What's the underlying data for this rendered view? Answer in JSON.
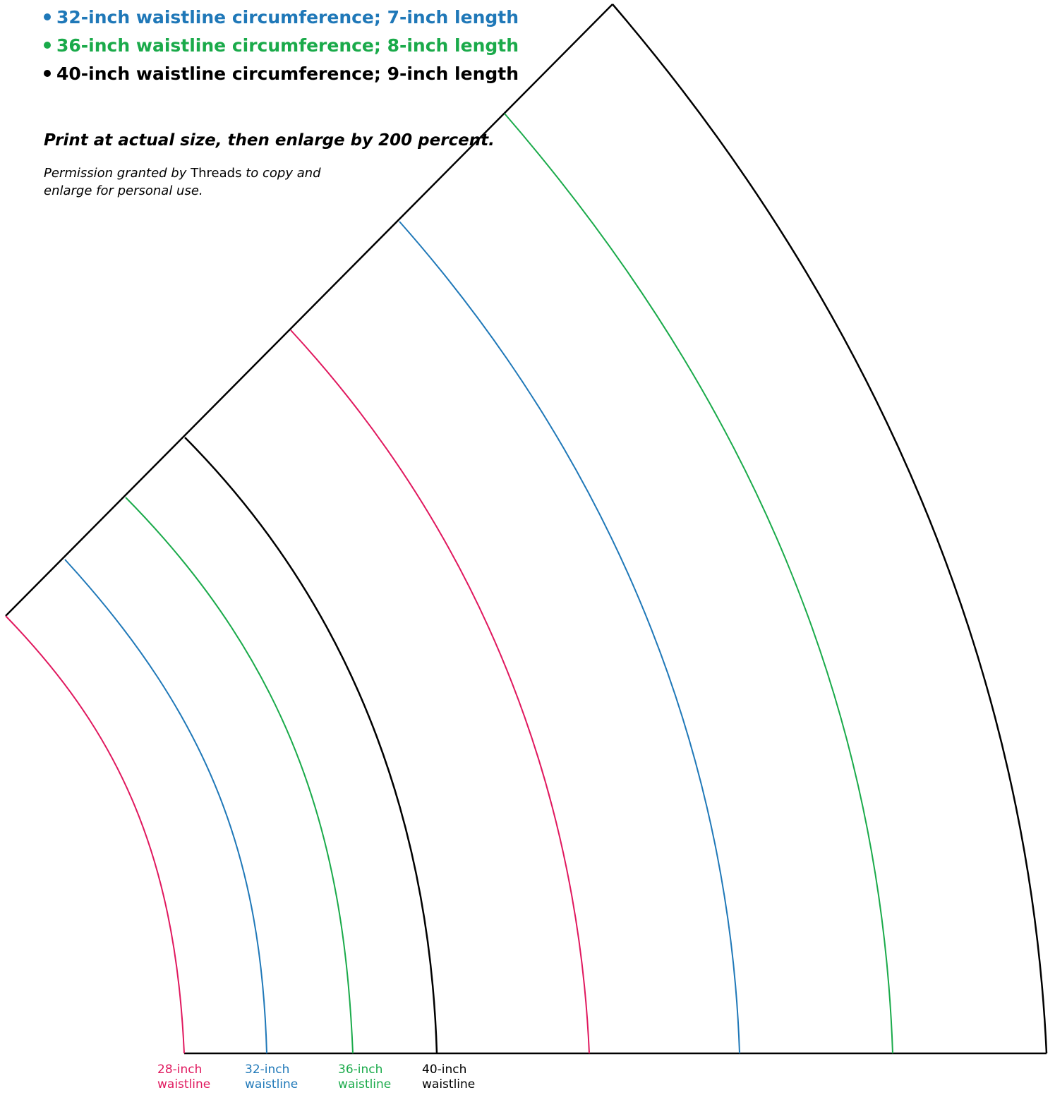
{
  "legend": {
    "items": [
      {
        "text": "32-inch waistline circumference; 7-inch length",
        "color": "#1f78b8"
      },
      {
        "text": "36-inch waistline circumference; 8-inch length",
        "color": "#1aaa4a"
      },
      {
        "text": "40-inch waistline circumference; 9-inch length",
        "color": "#000000"
      }
    ]
  },
  "instructions": {
    "print": "Print at actual size, then enlarge by 200 percent.",
    "permission_before": "Permission granted by",
    "permission_publication": "Threads",
    "permission_after": "to copy and enlarge for personal use."
  },
  "waistline_labels": [
    {
      "size": "28-inch",
      "word": "waistline",
      "color": "#e0185e"
    },
    {
      "size": "32-inch",
      "word": "waistline",
      "color": "#1f78b8"
    },
    {
      "size": "36-inch",
      "word": "waistline",
      "color": "#1aaa4a"
    },
    {
      "size": "40-inch",
      "word": "waistline",
      "color": "#000000"
    }
  ]
}
